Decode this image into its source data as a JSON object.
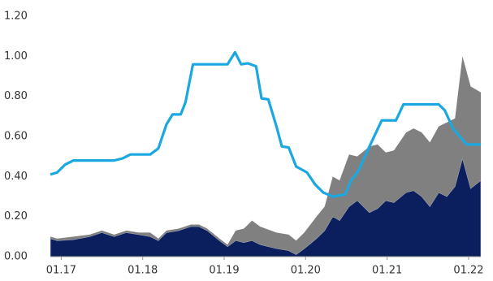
{
  "chart_data": {
    "type": "area",
    "xlim": [
      -1.6,
      61.8
    ],
    "xticks": [
      {
        "value": 0,
        "label": "01.17"
      },
      {
        "value": 12,
        "label": "01.18"
      },
      {
        "value": 24,
        "label": "01.19"
      },
      {
        "value": 36,
        "label": "01.20"
      },
      {
        "value": 48,
        "label": "01.21"
      },
      {
        "value": 60,
        "label": "01.22"
      }
    ],
    "ylim": [
      0,
      1.2
    ],
    "yticks": [
      {
        "value": 0,
        "label": "0.00"
      },
      {
        "value": 0.2,
        "label": "0.20"
      },
      {
        "value": 0.4,
        "label": "0.40"
      },
      {
        "value": 0.6,
        "label": "0.60"
      },
      {
        "value": 0.8,
        "label": "0.80"
      },
      {
        "value": 1.0,
        "label": "1.00"
      },
      {
        "value": 1.2,
        "label": "1.20"
      }
    ],
    "grid": false,
    "series": [
      {
        "type": "area",
        "color": "#0b1f5e",
        "x": [
          -1.6,
          -0.6,
          1.8,
          4.2,
          6.0,
          7.8,
          9.6,
          11.4,
          13.1,
          14.3,
          15.5,
          17.3,
          19.1,
          20.3,
          21.5,
          23.3,
          24.5,
          25.7,
          26.9,
          28.1,
          29.3,
          31.7,
          33.5,
          34.6,
          35.8,
          37.6,
          38.8,
          40.0,
          41.0,
          42.4,
          43.6,
          45.4,
          46.6,
          47.8,
          49.0,
          50.8,
          51.9,
          53.1,
          54.3,
          55.6,
          56.8,
          58.0,
          59.1,
          60.3,
          61.8
        ],
        "values": [
          0.09,
          0.08,
          0.085,
          0.1,
          0.12,
          0.1,
          0.12,
          0.11,
          0.1,
          0.08,
          0.12,
          0.13,
          0.15,
          0.15,
          0.13,
          0.08,
          0.05,
          0.08,
          0.07,
          0.08,
          0.06,
          0.04,
          0.03,
          0.01,
          0.04,
          0.09,
          0.13,
          0.2,
          0.18,
          0.25,
          0.28,
          0.22,
          0.24,
          0.28,
          0.27,
          0.32,
          0.33,
          0.3,
          0.25,
          0.32,
          0.3,
          0.35,
          0.49,
          0.34,
          0.38
        ]
      },
      {
        "type": "area",
        "color": "#808080",
        "x": [
          -1.6,
          -0.6,
          1.8,
          4.2,
          6.0,
          7.8,
          9.6,
          11.4,
          13.1,
          14.3,
          15.5,
          17.3,
          19.1,
          20.3,
          21.5,
          23.3,
          24.5,
          25.7,
          26.9,
          28.1,
          29.3,
          31.7,
          33.5,
          34.6,
          35.8,
          37.6,
          38.8,
          40.0,
          41.0,
          42.4,
          43.6,
          45.4,
          46.6,
          47.8,
          49.0,
          50.8,
          51.9,
          53.1,
          54.3,
          55.6,
          56.8,
          58.0,
          59.1,
          60.3,
          61.8
        ],
        "values": [
          0.01,
          0.01,
          0.015,
          0.01,
          0.01,
          0.01,
          0.01,
          0.01,
          0.02,
          0.01,
          0.01,
          0.01,
          0.01,
          0.01,
          0.01,
          0.01,
          0.01,
          0.05,
          0.07,
          0.1,
          0.09,
          0.08,
          0.08,
          0.07,
          0.08,
          0.11,
          0.12,
          0.2,
          0.2,
          0.26,
          0.22,
          0.33,
          0.32,
          0.24,
          0.26,
          0.3,
          0.31,
          0.32,
          0.32,
          0.33,
          0.37,
          0.34,
          0.51,
          0.51,
          0.44
        ]
      },
      {
        "type": "line",
        "color": "#1ba8e1",
        "x": [
          -1.6,
          -0.6,
          0.6,
          1.8,
          3.0,
          7.8,
          9.0,
          10.2,
          13.1,
          14.3,
          15.5,
          16.4,
          17.6,
          18.3,
          19.4,
          22.1,
          24.5,
          25.6,
          26.5,
          27.5,
          28.7,
          29.5,
          30.5,
          31.7,
          32.5,
          33.5,
          34.6,
          36.2,
          37.4,
          38.6,
          40.0,
          41.8,
          42.7,
          43.8,
          45.4,
          47.2,
          49.3,
          50.4,
          55.6,
          56.5,
          57.7,
          59.7,
          61.8
        ],
        "values": [
          0.41,
          0.42,
          0.46,
          0.48,
          0.48,
          0.48,
          0.49,
          0.51,
          0.51,
          0.54,
          0.66,
          0.71,
          0.71,
          0.77,
          0.96,
          0.96,
          0.96,
          1.02,
          0.96,
          0.965,
          0.95,
          0.79,
          0.785,
          0.65,
          0.55,
          0.545,
          0.45,
          0.42,
          0.36,
          0.32,
          0.3,
          0.31,
          0.38,
          0.43,
          0.55,
          0.68,
          0.68,
          0.76,
          0.76,
          0.73,
          0.64,
          0.56,
          0.56
        ]
      }
    ]
  }
}
